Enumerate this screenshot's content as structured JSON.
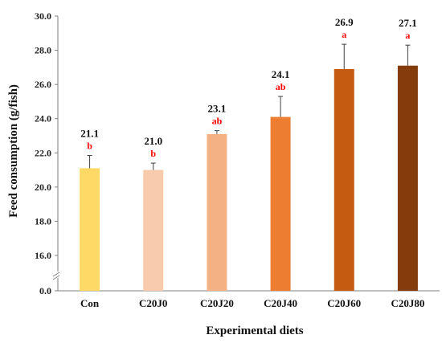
{
  "chart_data": {
    "type": "bar",
    "xlabel": "Experimental diets",
    "ylabel": "Feed consumption (g/fish)",
    "categories": [
      "Con",
      "C20J0",
      "C20J20",
      "C20J40",
      "C20J60",
      "C20J80"
    ],
    "values": [
      21.1,
      21.0,
      23.1,
      24.1,
      26.9,
      27.1
    ],
    "value_labels": [
      "21.1",
      "21.0",
      "23.1",
      "24.1",
      "26.9",
      "27.1"
    ],
    "error": [
      0.75,
      0.4,
      0.2,
      1.2,
      1.45,
      1.2
    ],
    "significance": [
      "b",
      "b",
      "ab",
      "ab",
      "a",
      "a"
    ],
    "colors": [
      "#FFD966",
      "#F8CBAD",
      "#F4B183",
      "#ED7D31",
      "#C55A11",
      "#843C0C"
    ],
    "yticks": [
      "0.0",
      "16.0",
      "18.0",
      "20.0",
      "22.0",
      "24.0",
      "26.0",
      "28.0",
      "30.0"
    ],
    "ylim": [
      14,
      30
    ],
    "axis_break": true,
    "grid": false
  }
}
